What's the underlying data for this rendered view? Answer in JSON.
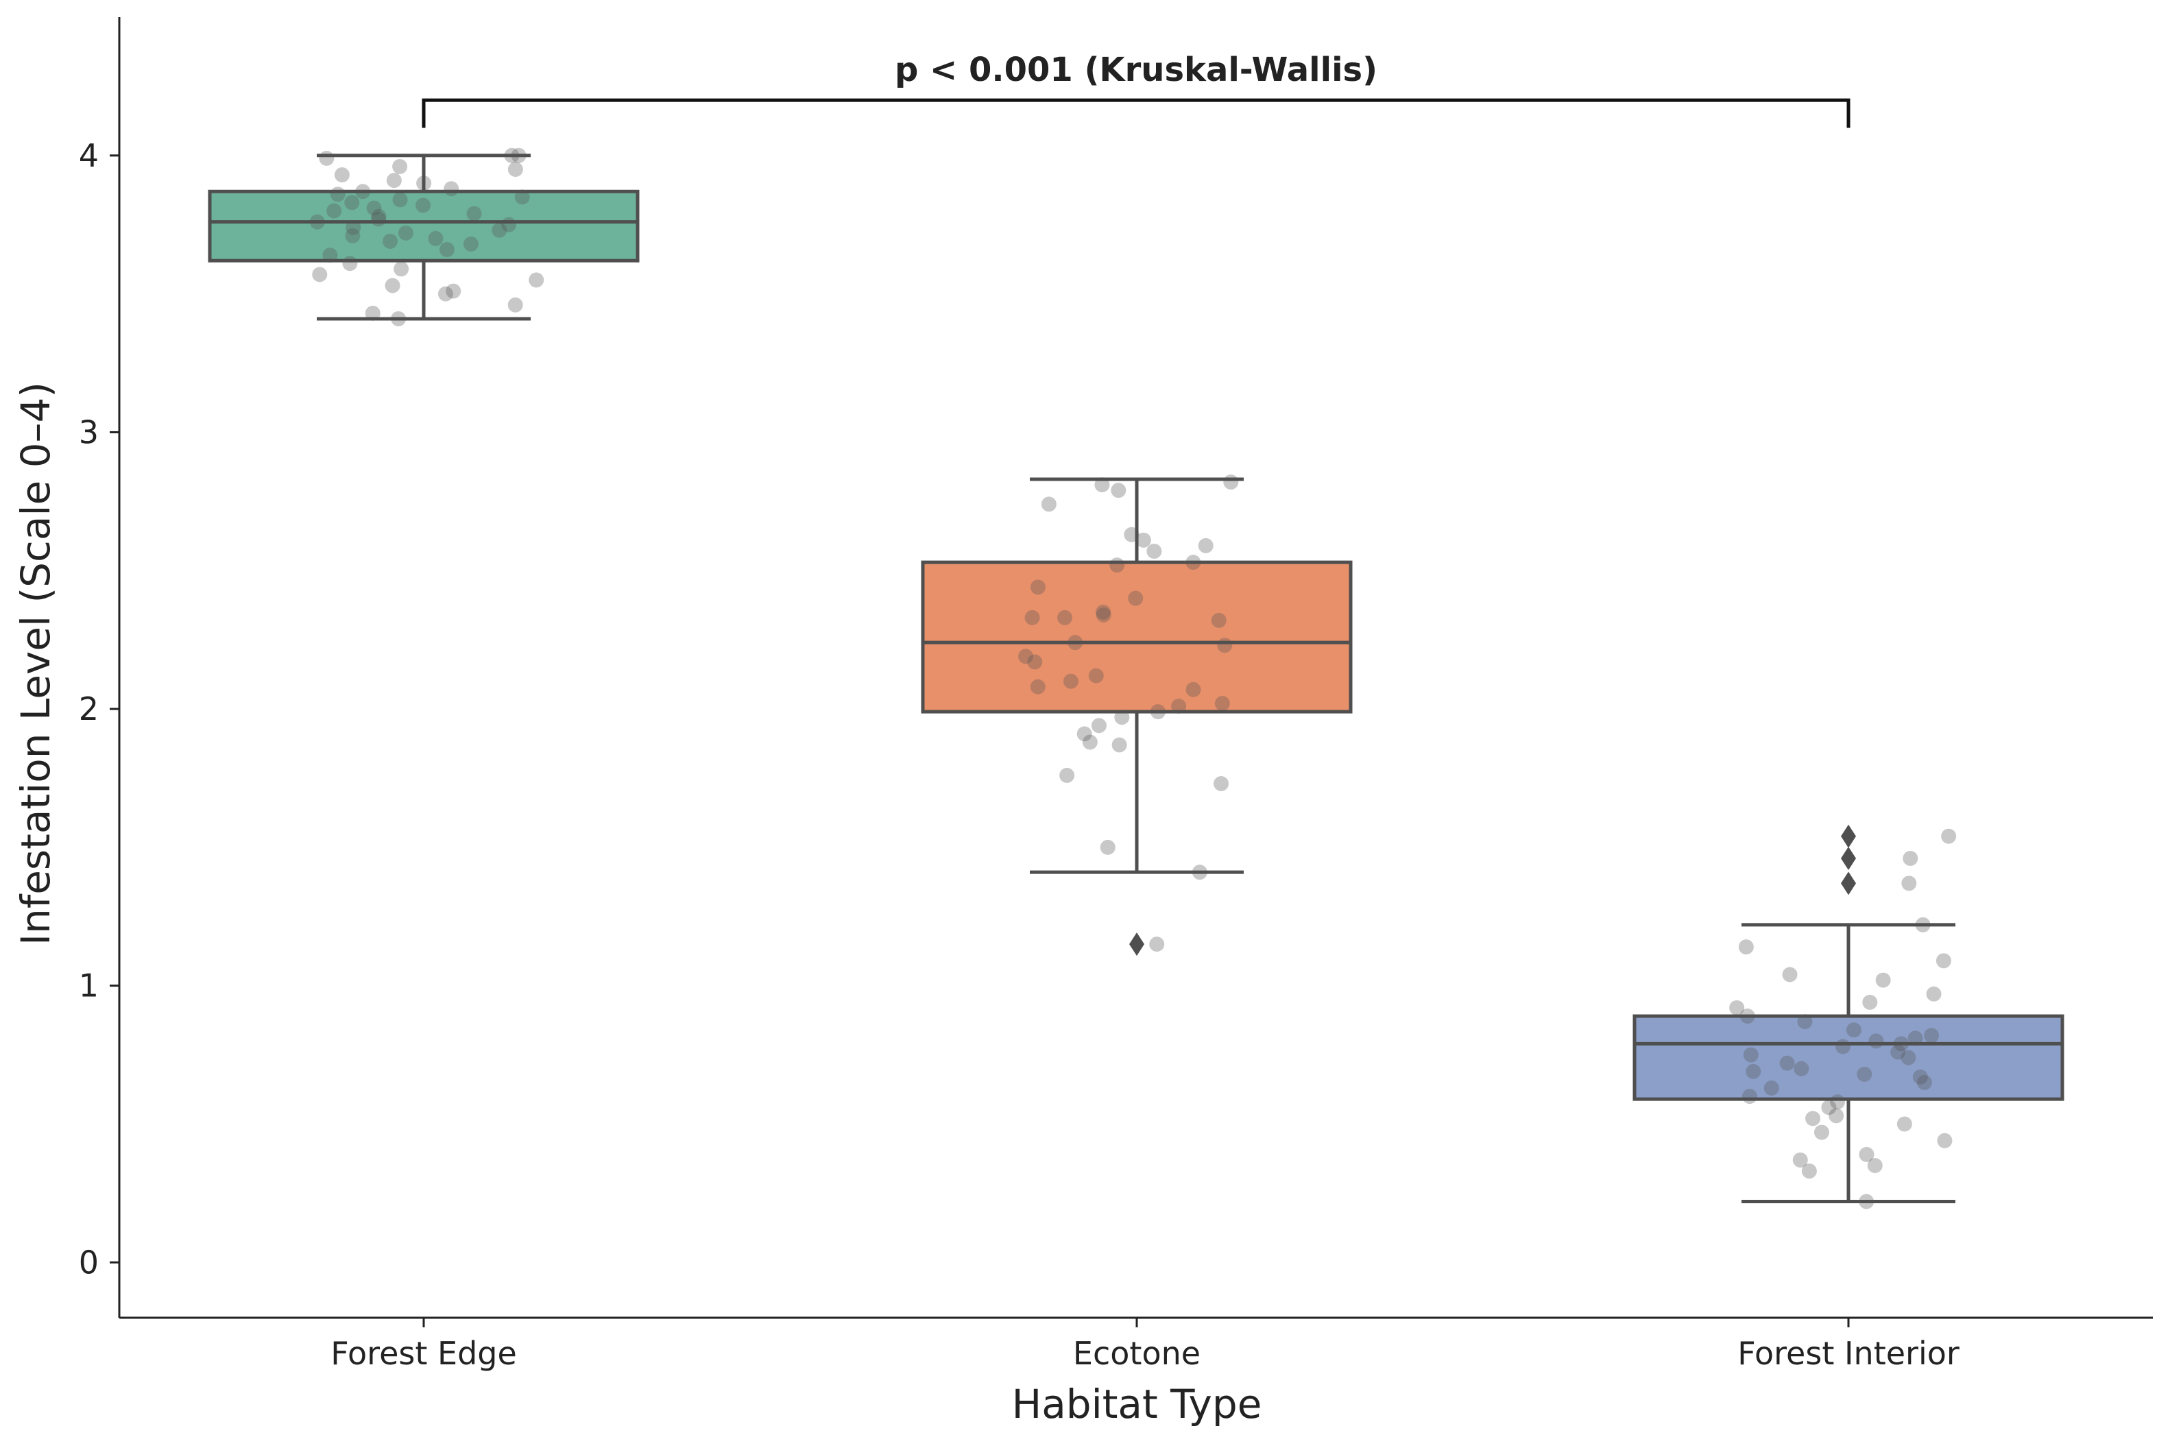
{
  "chart_data": {
    "type": "box",
    "xlabel": "Habitat Type",
    "ylabel": "Infestation Level (Scale 0–4)",
    "ylim": [
      -0.2,
      4.5
    ],
    "yticks": [
      0,
      1,
      2,
      3,
      4
    ],
    "ytick_labels": [
      "0",
      "1",
      "2",
      "3",
      "4"
    ],
    "grid": false,
    "annotation": {
      "text": "p < 0.001 (Kruskal-Wallis)",
      "from_category": "Forest Edge",
      "to_category": "Forest Interior",
      "bracket_y": 4.2,
      "bracket_drop_y": 4.1
    },
    "categories": [
      "Forest Edge",
      "Ecotone",
      "Forest Interior"
    ],
    "boxes": [
      {
        "category": "Forest Edge",
        "color": "#6db39b",
        "whisker_low": 3.41,
        "q1": 3.62,
        "median": 3.76,
        "q3": 3.87,
        "whisker_high": 4.0,
        "outliers": [],
        "points": [
          4.0,
          4.0,
          3.99,
          3.96,
          3.95,
          3.93,
          3.91,
          3.9,
          3.88,
          3.87,
          3.86,
          3.85,
          3.84,
          3.83,
          3.82,
          3.81,
          3.8,
          3.79,
          3.78,
          3.77,
          3.76,
          3.75,
          3.74,
          3.73,
          3.72,
          3.71,
          3.7,
          3.69,
          3.68,
          3.66,
          3.64,
          3.61,
          3.59,
          3.57,
          3.55,
          3.53,
          3.51,
          3.5,
          3.46,
          3.43,
          3.41
        ]
      },
      {
        "category": "Ecotone",
        "color": "#e8906a",
        "whisker_low": 1.41,
        "q1": 1.99,
        "median": 2.24,
        "q3": 2.53,
        "whisker_high": 2.83,
        "outliers": [
          1.15
        ],
        "points": [
          2.82,
          2.81,
          2.79,
          2.74,
          2.63,
          2.61,
          2.59,
          2.57,
          2.53,
          2.52,
          2.44,
          2.4,
          2.35,
          2.34,
          2.33,
          2.33,
          2.32,
          2.24,
          2.23,
          2.19,
          2.17,
          2.12,
          2.1,
          2.08,
          2.07,
          2.02,
          2.01,
          1.99,
          1.97,
          1.94,
          1.91,
          1.88,
          1.87,
          1.76,
          1.73,
          1.5,
          1.41,
          1.15
        ]
      },
      {
        "category": "Forest Interior",
        "color": "#8c9fc8",
        "whisker_low": 0.22,
        "q1": 0.59,
        "median": 0.79,
        "q3": 0.89,
        "whisker_high": 1.22,
        "outliers": [
          1.54,
          1.46,
          1.37
        ],
        "points": [
          1.54,
          1.46,
          1.37,
          1.22,
          1.14,
          1.09,
          1.04,
          1.02,
          0.97,
          0.94,
          0.92,
          0.89,
          0.87,
          0.84,
          0.82,
          0.81,
          0.8,
          0.79,
          0.78,
          0.76,
          0.75,
          0.74,
          0.72,
          0.7,
          0.69,
          0.68,
          0.67,
          0.65,
          0.63,
          0.6,
          0.58,
          0.56,
          0.53,
          0.52,
          0.5,
          0.47,
          0.44,
          0.39,
          0.37,
          0.35,
          0.33,
          0.22
        ]
      }
    ]
  }
}
